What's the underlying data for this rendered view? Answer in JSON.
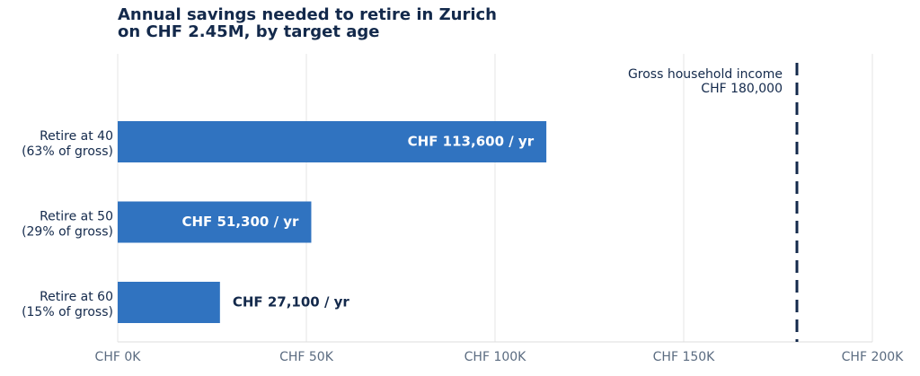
{
  "chart_data": {
    "type": "bar",
    "orientation": "horizontal",
    "title": [
      "Annual savings needed to retire in Zurich",
      "on CHF 2.45M, by target age"
    ],
    "categories": [
      [
        "Retire at 40",
        "(63% of gross)"
      ],
      [
        "Retire at 50",
        "(29% of gross)"
      ],
      [
        "Retire at 60",
        "(15% of gross)"
      ]
    ],
    "values": [
      113600,
      51300,
      27100
    ],
    "value_labels": [
      "CHF 113,600 / yr",
      "CHF 51,300 / yr",
      "CHF 27,100 / yr"
    ],
    "color": "#3073c0",
    "xlim": [
      0,
      200000
    ],
    "xticks": [
      {
        "value": 0,
        "label": "CHF 0K"
      },
      {
        "value": 50000,
        "label": "CHF 50K"
      },
      {
        "value": 100000,
        "label": "CHF 100K"
      },
      {
        "value": 150000,
        "label": "CHF 150K"
      },
      {
        "value": 200000,
        "label": "CHF 200K"
      }
    ],
    "grid": true,
    "reference_line": {
      "value": 180000,
      "label": [
        "Gross household income",
        "CHF 180,000"
      ],
      "color": "#13294b"
    }
  }
}
